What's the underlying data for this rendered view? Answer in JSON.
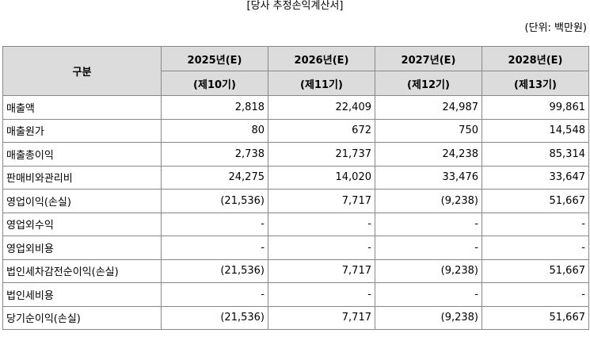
{
  "header": {
    "title": "[당사 추정손익계산서]",
    "unit": "(단위: 백만원)"
  },
  "table": {
    "corner": "구분",
    "years": [
      "2025년(E)",
      "2026년(E)",
      "2027년(E)",
      "2028년(E)"
    ],
    "periods": [
      "(제10기)",
      "(제11기)",
      "(제12기)",
      "(제13기)"
    ],
    "rows": [
      [
        "매출액",
        "2,818",
        "22,409",
        "24,987",
        "99,861"
      ],
      [
        "매출원가",
        "80",
        "672",
        "750",
        "14,548"
      ],
      [
        "매출총이익",
        "2,738",
        "21,737",
        "24,238",
        "85,314"
      ],
      [
        "판매비와관리비",
        "24,275",
        "14,020",
        "33,476",
        "33,647"
      ],
      [
        "영업이익(손실)",
        "(21,536)",
        "7,717",
        "(9,238)",
        "51,667"
      ],
      [
        "영업외수익",
        "-",
        "-",
        "-",
        "-"
      ],
      [
        "영업외비용",
        "-",
        "-",
        "-",
        "-"
      ],
      [
        "법인세차감전순이익(손실)",
        "(21,536)",
        "7,717",
        "(9,238)",
        "51,667"
      ],
      [
        "법인세비용",
        "-",
        "-",
        "-",
        "-"
      ],
      [
        "당기순이익(손실)",
        "(21,536)",
        "7,717",
        "(9,238)",
        "51,667"
      ]
    ]
  }
}
